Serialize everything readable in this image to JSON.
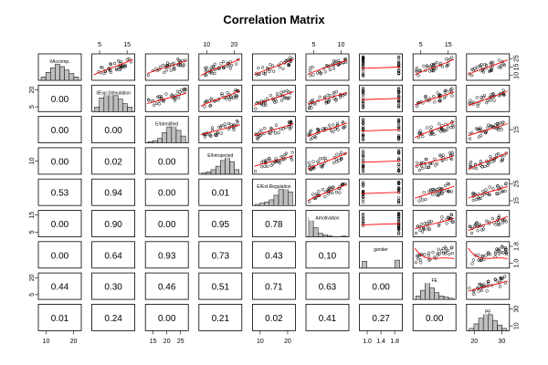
{
  "chart_data": {
    "type": "table",
    "title": "Correlation Matrix",
    "variables": [
      "I/Accomp.",
      "I/Exp.Stimulation",
      "E/Identified",
      "E/Introjected",
      "E/Ext.Regulation",
      "Amotivation",
      "gender",
      "FE",
      "PE"
    ],
    "lower_panel_values": [
      [
        "0.00"
      ],
      [
        "0.00",
        "0.00"
      ],
      [
        "0.00",
        "0.02",
        "0.00"
      ],
      [
        "0.53",
        "0.94",
        "0.00",
        "0.01"
      ],
      [
        "0.00",
        "0.90",
        "0.00",
        "0.95",
        "0.78"
      ],
      [
        "0.00",
        "0.64",
        "0.93",
        "0.73",
        "0.43",
        "0.10"
      ],
      [
        "0.44",
        "0.30",
        "0.46",
        "0.51",
        "0.71",
        "0.63",
        "0.00"
      ],
      [
        "0.01",
        "0.24",
        "0.00",
        "0.21",
        "0.02",
        "0.41",
        "0.27",
        "0.00"
      ]
    ],
    "top_axis_ticks": {
      "1": [
        "5",
        "15"
      ],
      "3": [
        "10",
        "20"
      ],
      "5": [
        "5",
        "10"
      ],
      "7": [
        "5",
        "15"
      ]
    },
    "bottom_axis_ticks": {
      "0": [
        "10",
        "20"
      ],
      "2": [
        "15",
        "20",
        "25"
      ],
      "4": [
        "10",
        "20"
      ],
      "6": [
        "1.0",
        "1.4",
        "1.8"
      ],
      "8": [
        "20",
        "30"
      ]
    },
    "left_axis_ticks": {
      "1": [
        "5",
        "20"
      ],
      "3": [
        "10"
      ],
      "5": [
        "5",
        "15"
      ],
      "7": [
        "5",
        "20"
      ]
    },
    "right_axis_ticks": {
      "0": [
        "10",
        "15",
        "25"
      ],
      "2": [
        "15"
      ],
      "4": [
        "15",
        "25"
      ],
      "6": [
        "1.0",
        "1.8"
      ],
      "8": [
        "10",
        "30"
      ]
    },
    "upper_panel_style": "scatterplot with red smoother",
    "diagonal_style": "histogram with variable name",
    "colors": {
      "points": "#000000",
      "smoother": "#ff0000",
      "histogram": "#bebebe",
      "frame": "#000000"
    }
  }
}
